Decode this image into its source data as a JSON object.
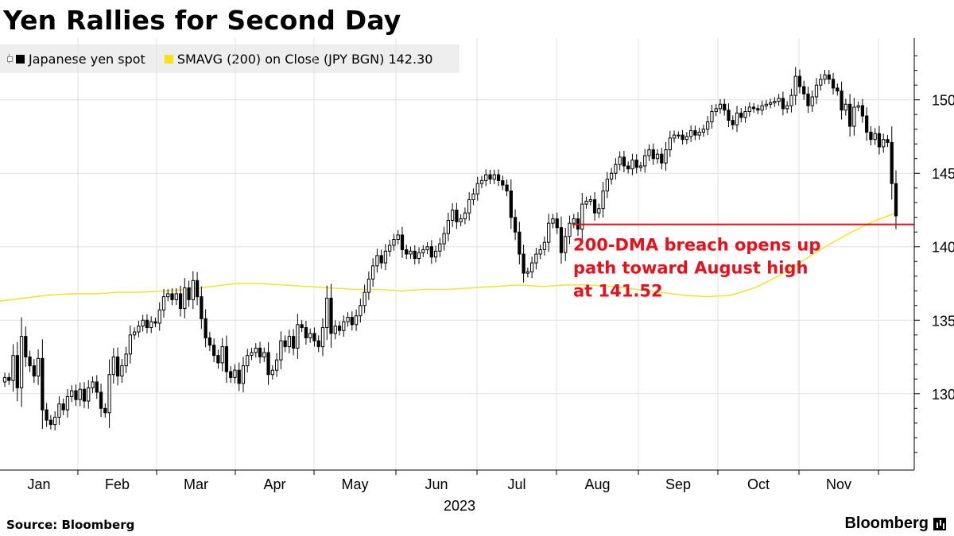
{
  "title": "Yen Rallies for Second Day",
  "legend": {
    "series1_label": "Japanese yen spot",
    "series2_label": "SMAVG (200)  on Close (JPY BGN) 142.30"
  },
  "source": "Source: Bloomberg",
  "brand": "Bloomberg",
  "colors": {
    "candle": "#000000",
    "sma": "#f5e21a",
    "annotation": "#e8101b",
    "grid": "#e0e0e0"
  },
  "chart_data": {
    "type": "line",
    "x_ticks": [
      "Jan",
      "Feb",
      "Mar",
      "Apr",
      "May",
      "Jun",
      "Jul",
      "Aug",
      "Sep",
      "Oct",
      "Nov"
    ],
    "x_year_label": "2023",
    "y_ticks": [
      130,
      135,
      140,
      145,
      150
    ],
    "ylim": [
      124.8,
      154.2
    ],
    "grid": true,
    "legend_position": "top-left",
    "series": [
      {
        "name": "Japanese yen spot",
        "style": "candlestick",
        "values": [
          131.1,
          130.9,
          132.6,
          130.4,
          133.9,
          132.5,
          131.9,
          131.2,
          132.4,
          128.9,
          128.2,
          127.9,
          128.4,
          129.3,
          128.9,
          129.8,
          130.2,
          129.6,
          130.3,
          129.5,
          130.4,
          130.8,
          130.1,
          129.0,
          128.7,
          131.3,
          132.5,
          131.2,
          131.9,
          132.7,
          134.0,
          134.2,
          134.6,
          135.0,
          134.5,
          134.9,
          134.8,
          135.7,
          136.6,
          136.8,
          136.4,
          136.8,
          135.8,
          137.2,
          136.4,
          137.7,
          136.6,
          135.1,
          133.8,
          133.3,
          132.6,
          132.1,
          133.2,
          131.5,
          131.1,
          131.6,
          130.7,
          131.9,
          132.6,
          132.8,
          133.1,
          132.5,
          132.8,
          131.3,
          131.6,
          132.3,
          133.6,
          133.2,
          133.9,
          133.1,
          134.7,
          134.5,
          133.8,
          134.1,
          133.6,
          133.2,
          134.5,
          136.5,
          134.1,
          134.6,
          134.3,
          134.9,
          135.2,
          134.7,
          135.3,
          136.0,
          136.9,
          137.8,
          138.7,
          139.4,
          138.9,
          139.7,
          140.1,
          140.5,
          140.8,
          139.8,
          139.5,
          139.7,
          139.2,
          139.6,
          139.8,
          140.0,
          139.3,
          139.7,
          140.2,
          140.9,
          141.8,
          142.5,
          141.7,
          141.9,
          142.3,
          143.2,
          143.6,
          144.3,
          144.5,
          144.9,
          144.6,
          144.9,
          144.5,
          144.2,
          143.8,
          142.0,
          141.0,
          139.5,
          138.2,
          138.3,
          138.9,
          139.5,
          139.8,
          140.3,
          141.6,
          141.9,
          141.3,
          139.6,
          140.7,
          141.6,
          141.9,
          141.2,
          142.9,
          143.1,
          143.2,
          142.3,
          142.6,
          143.8,
          144.6,
          145.0,
          145.6,
          146.1,
          145.5,
          145.3,
          145.9,
          145.4,
          145.5,
          146.2,
          146.6,
          146.0,
          146.3,
          145.7,
          146.6,
          147.4,
          147.6,
          147.6,
          147.3,
          147.5,
          147.9,
          147.6,
          147.8,
          148.0,
          148.5,
          149.2,
          149.4,
          149.7,
          149.3,
          148.6,
          148.3,
          149.1,
          148.8,
          149.2,
          149.5,
          149.4,
          149.3,
          149.6,
          149.7,
          149.8,
          149.9,
          150.1,
          149.4,
          149.6,
          150.3,
          151.6,
          150.9,
          150.4,
          149.6,
          150.2,
          151.0,
          151.4,
          151.7,
          151.4,
          150.8,
          150.6,
          149.3,
          149.7,
          148.2,
          149.5,
          149.6,
          148.9,
          147.8,
          147.3,
          147.7,
          146.8,
          147.3,
          147.1,
          144.3,
          142.1
        ]
      },
      {
        "name": "SMAVG (200)  on Close (JPY BGN) 142.30",
        "style": "line",
        "values": [
          136.3,
          136.5,
          136.7,
          136.8,
          136.8,
          136.9,
          136.9,
          137.0,
          137.1,
          137.3,
          137.5,
          137.5,
          137.4,
          137.3,
          137.2,
          137.1,
          137.1,
          137.0,
          137.1,
          137.1,
          137.2,
          137.3,
          137.4,
          137.3,
          137.4,
          137.4,
          137.3,
          137.1,
          136.9,
          136.7,
          136.6,
          136.7,
          137.2,
          138.0,
          139.0,
          140.0,
          140.9,
          141.7,
          142.3
        ]
      }
    ],
    "annotation": {
      "line_value": 141.52,
      "text_lines": [
        "200-DMA breach opens up",
        "path toward August high",
        "at 141.52"
      ]
    }
  }
}
